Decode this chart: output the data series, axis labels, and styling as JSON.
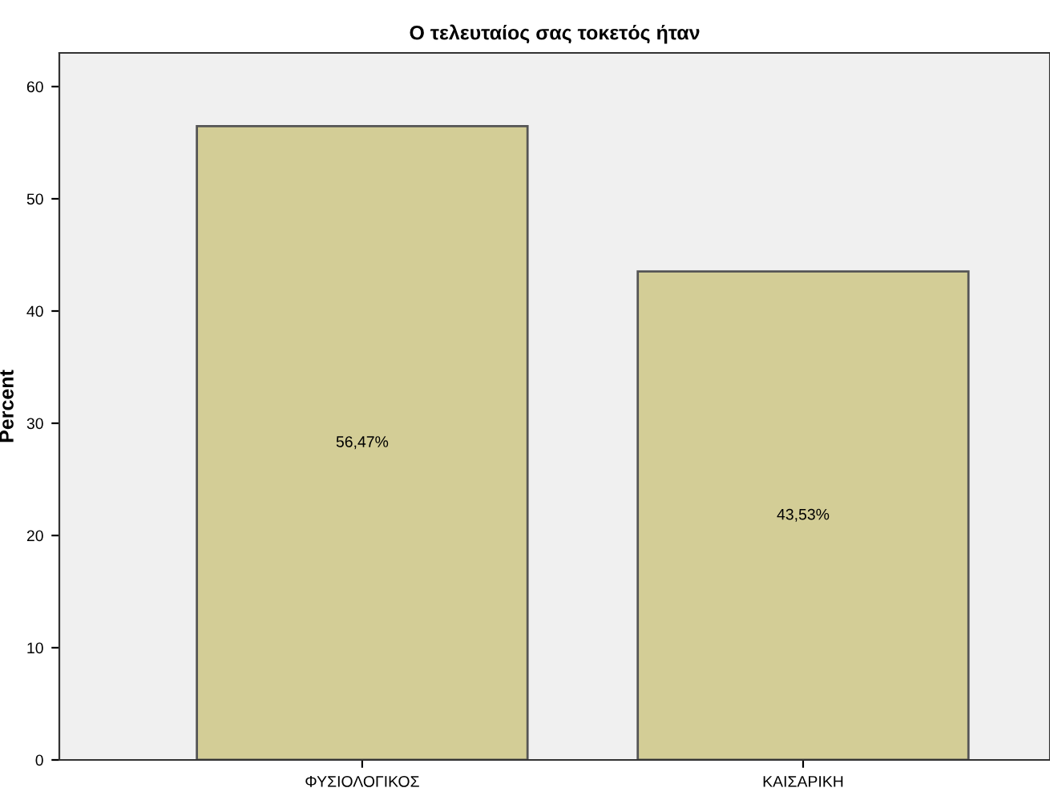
{
  "chart_data": {
    "type": "bar",
    "title": "Ο τελευταίος σας τοκετός ήταν",
    "ylabel": "Percent",
    "categories": [
      "ΦΥΣΙΟΛΟΓΙΚΟΣ",
      "ΚΑΙΣΑΡΙΚΗ"
    ],
    "values": [
      56.47,
      43.53
    ],
    "value_labels": [
      "56,47%",
      "43,53%"
    ],
    "color": "#d3cd96",
    "ylim": [
      0,
      63
    ],
    "yticks": [
      0,
      10,
      20,
      30,
      40,
      50,
      60
    ],
    "grid": false,
    "legend": false
  }
}
